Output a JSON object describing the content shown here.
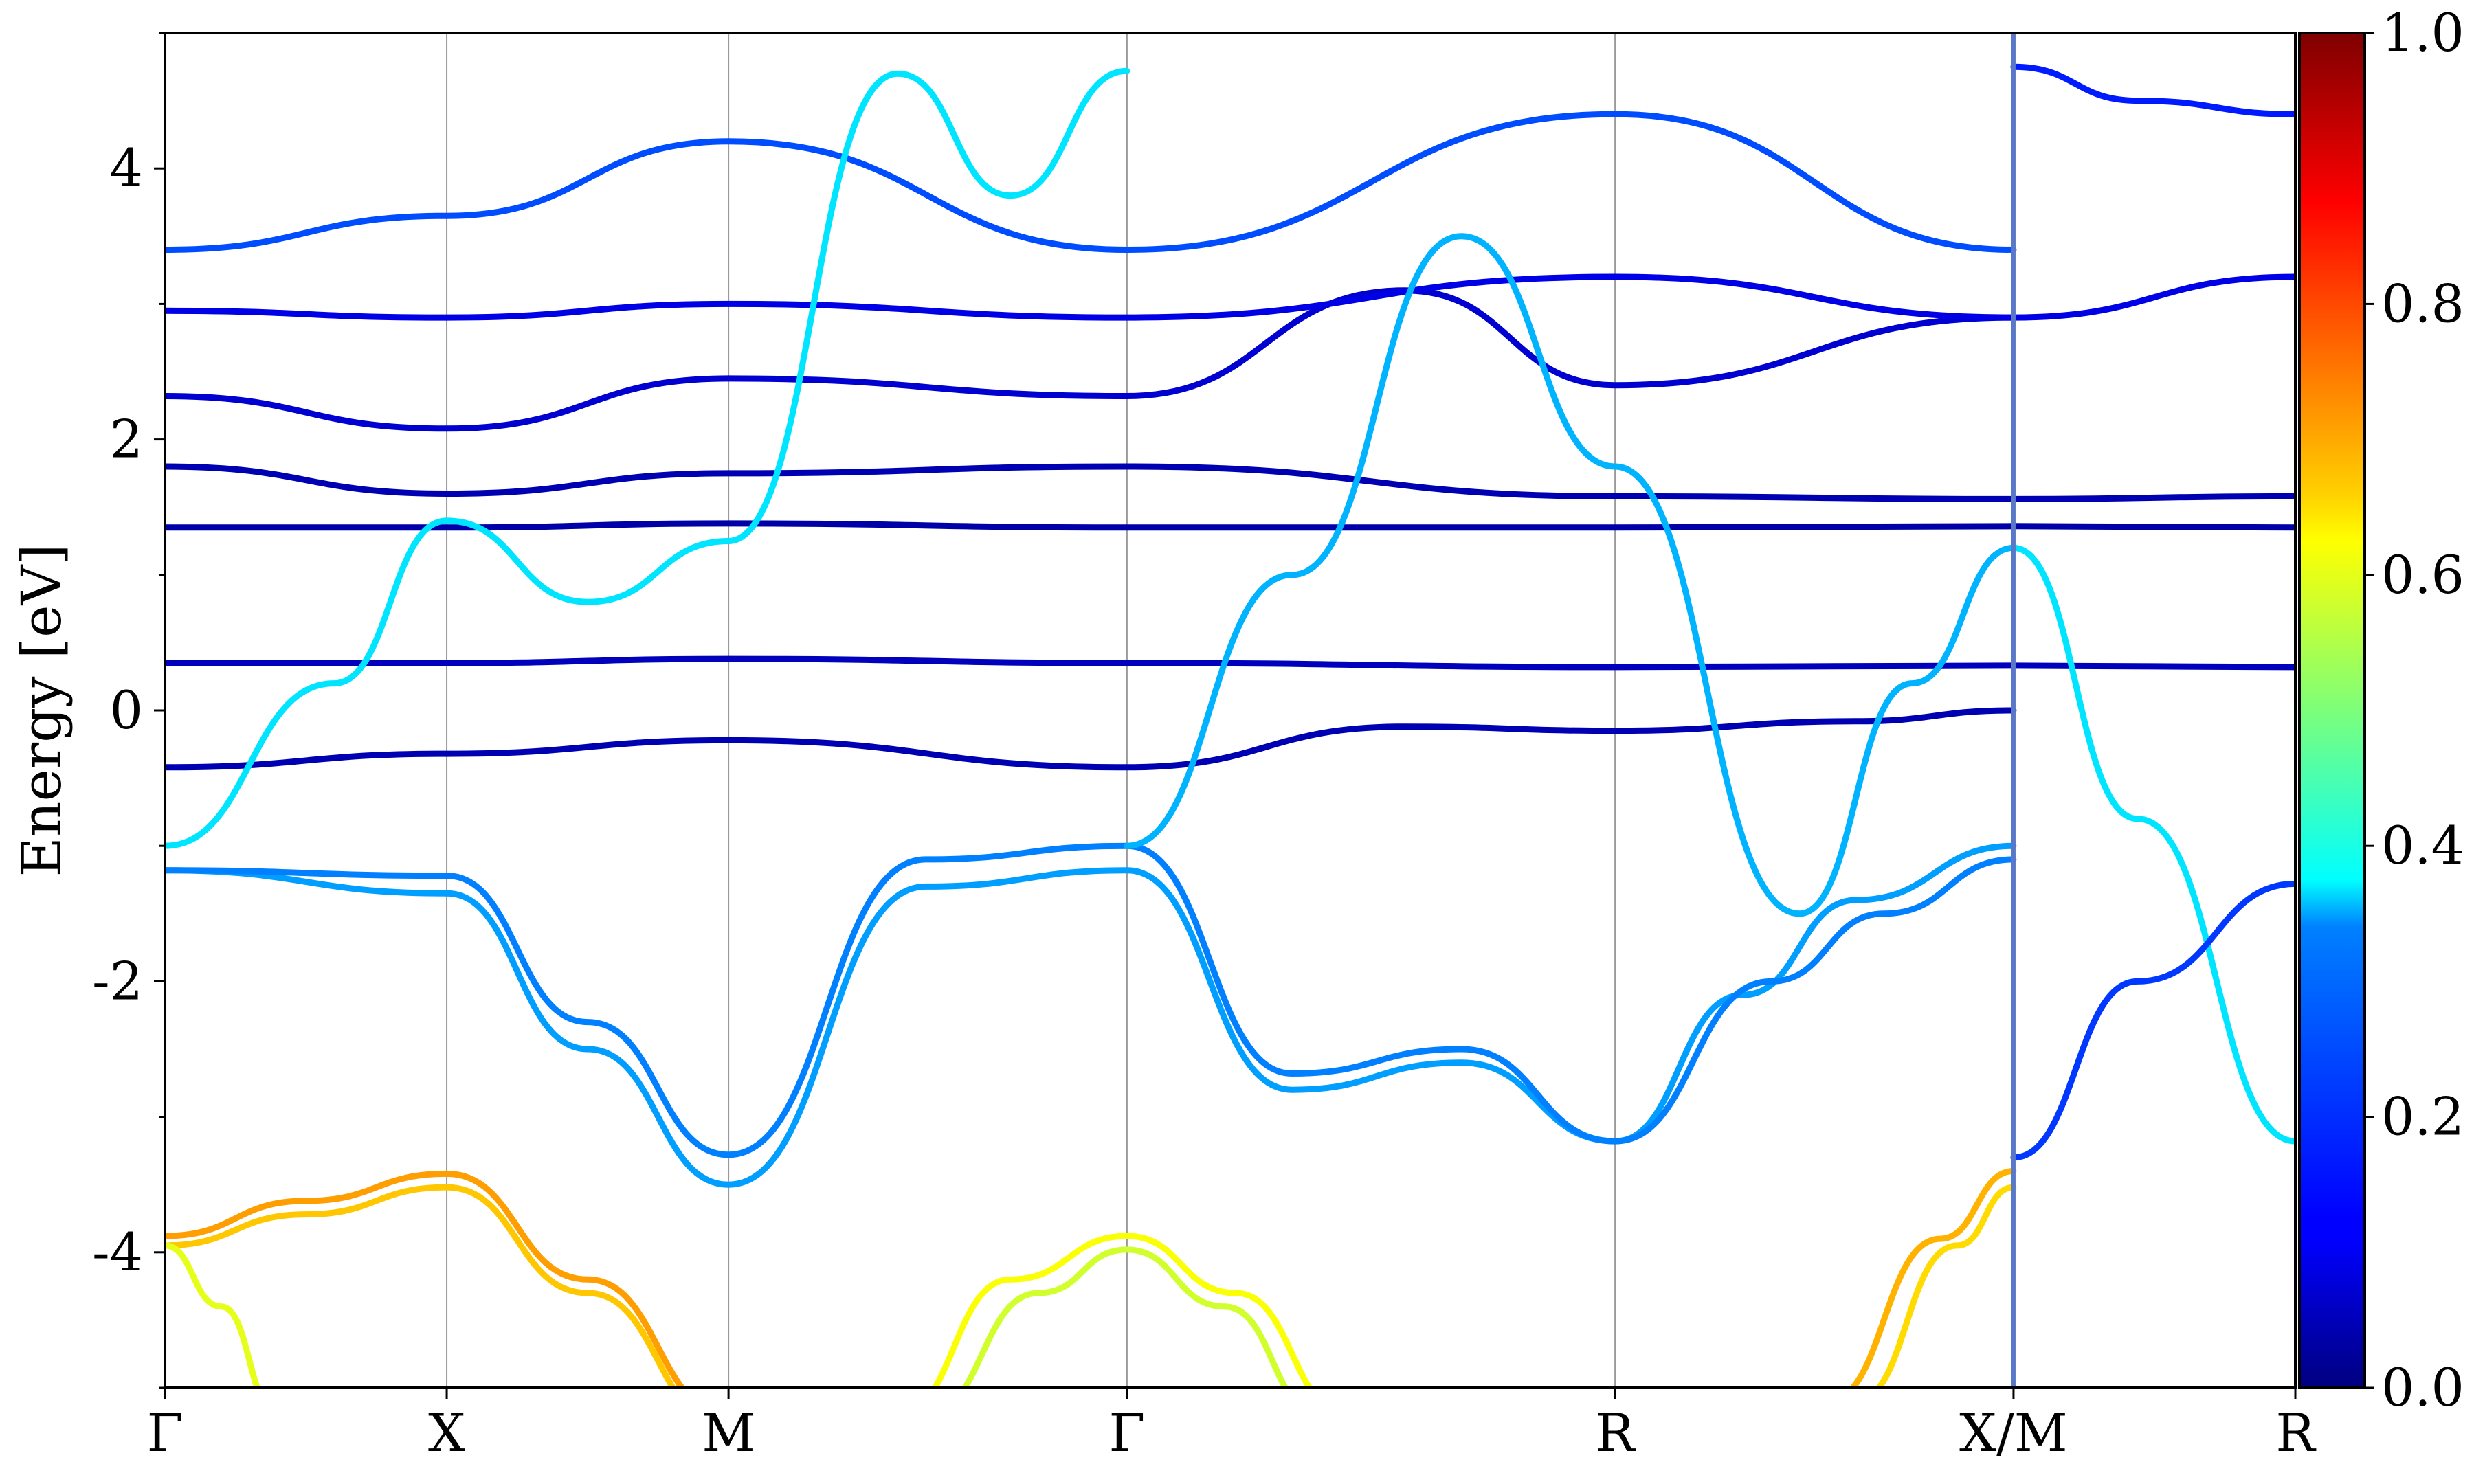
{
  "chart_data": {
    "type": "line",
    "ylabel": "Energy [eV]",
    "xlabel": "",
    "ylim": [
      -5,
      5
    ],
    "yticks": [
      -4,
      -2,
      0,
      2,
      4
    ],
    "ytick_labels": [
      "-4",
      "-2",
      "0",
      "2",
      "4"
    ],
    "kpath_labels": [
      "Γ",
      "X",
      "M",
      "Γ",
      "R",
      "X/M",
      "R"
    ],
    "kpath_positions": [
      0,
      0.5,
      1.0,
      1.707,
      2.573,
      3.28,
      3.78
    ],
    "path_break_at": 3.28,
    "colorbar": {
      "colormap": "jet",
      "range": [
        0.0,
        1.0
      ],
      "ticks": [
        0.0,
        0.2,
        0.4,
        0.6,
        0.8,
        1.0
      ],
      "tick_labels": [
        "0.0",
        "0.2",
        "0.4",
        "0.6",
        "0.8",
        "1.0"
      ]
    },
    "bands": [
      {
        "name": "",
        "weight": 0.72,
        "kx": [
          0,
          0.25,
          0.5,
          0.75,
          1.0
        ],
        "energy": [
          -3.88,
          -3.62,
          -3.42,
          -4.2,
          -5.2
        ]
      },
      {
        "name": "",
        "weight": 0.68,
        "kx": [
          0,
          0.25,
          0.5,
          0.75,
          1.0
        ],
        "energy": [
          -3.95,
          -3.72,
          -3.52,
          -4.3,
          -5.3
        ]
      },
      {
        "name": "",
        "weight": 0.6,
        "kx": [
          0,
          0.1,
          0.2
        ],
        "energy": [
          -3.95,
          -4.4,
          -5.2
        ]
      },
      {
        "name": "",
        "weight": 0.62,
        "kx": [
          1.3,
          1.5,
          1.707,
          1.9,
          2.1
        ],
        "energy": [
          -5.2,
          -4.2,
          -3.88,
          -4.3,
          -5.2
        ]
      },
      {
        "name": "",
        "weight": 0.58,
        "kx": [
          1.35,
          1.55,
          1.707,
          1.88,
          2.05
        ],
        "energy": [
          -5.2,
          -4.3,
          -3.98,
          -4.4,
          -5.2
        ]
      },
      {
        "name": "",
        "weight": 0.7,
        "kx": [
          2.95,
          3.15,
          3.28
        ],
        "energy": [
          -5.1,
          -3.9,
          -3.4
        ]
      },
      {
        "name": "",
        "weight": 0.66,
        "kx": [
          3.0,
          3.18,
          3.28
        ],
        "energy": [
          -5.1,
          -3.95,
          -3.52
        ]
      },
      {
        "name": "",
        "weight": 0.28,
        "kx": [
          0,
          0.5,
          0.75,
          1.0,
          1.35,
          1.707,
          2.0,
          2.3,
          2.573,
          2.8,
          3.0,
          3.28
        ],
        "energy": [
          -1.18,
          -1.35,
          -2.5,
          -3.5,
          -1.3,
          -1.18,
          -2.8,
          -2.6,
          -3.18,
          -2.1,
          -1.4,
          -1.0
        ]
      },
      {
        "name": "",
        "weight": 0.25,
        "kx": [
          0,
          0.5,
          0.75,
          1.0,
          1.35,
          1.707,
          2.0,
          2.3,
          2.573,
          2.85,
          3.05,
          3.28
        ],
        "energy": [
          -1.18,
          -1.22,
          -2.3,
          -3.28,
          -1.1,
          -1.0,
          -2.68,
          -2.5,
          -3.18,
          -2.0,
          -1.5,
          -1.1
        ]
      },
      {
        "name": "",
        "weight": 0.05,
        "kx": [
          0,
          0.5,
          1.0,
          1.707,
          2.2,
          2.573,
          3.0,
          3.28
        ],
        "energy": [
          -0.42,
          -0.32,
          -0.22,
          -0.42,
          -0.12,
          -0.15,
          -0.08,
          0.0
        ]
      },
      {
        "name": "",
        "weight": 0.06,
        "kx": [
          0,
          0.5,
          1.0,
          1.707,
          2.573,
          3.28,
          3.78
        ],
        "energy": [
          0.35,
          0.35,
          0.38,
          0.35,
          0.32,
          0.33,
          0.32
        ]
      },
      {
        "name": "",
        "weight": 0.04,
        "kx": [
          0,
          0.5,
          1.0,
          1.707,
          2.573,
          3.28,
          3.78
        ],
        "energy": [
          1.35,
          1.35,
          1.38,
          1.35,
          1.35,
          1.36,
          1.35
        ]
      },
      {
        "name": "",
        "weight": 0.05,
        "kx": [
          0,
          0.5,
          1.0,
          1.707,
          2.573,
          3.28,
          3.78
        ],
        "energy": [
          1.8,
          1.6,
          1.75,
          1.8,
          1.58,
          1.56,
          1.58
        ]
      },
      {
        "name": "",
        "weight": 0.08,
        "kx": [
          0,
          0.5,
          1.0,
          1.707,
          2.2,
          2.573,
          3.28
        ],
        "energy": [
          2.32,
          2.08,
          2.45,
          2.32,
          3.1,
          2.4,
          2.9
        ]
      },
      {
        "name": "",
        "weight": 0.1,
        "kx": [
          0,
          0.5,
          1.0,
          1.707,
          2.573,
          3.28,
          3.78
        ],
        "energy": [
          2.95,
          2.9,
          3.0,
          2.9,
          3.2,
          2.9,
          3.2
        ]
      },
      {
        "name": "",
        "weight": 0.2,
        "kx": [
          0,
          0.5,
          1.0,
          1.707,
          2.573,
          3.28
        ],
        "energy": [
          3.4,
          3.65,
          4.2,
          3.4,
          4.4,
          3.4
        ]
      },
      {
        "name": "",
        "weight": 0.35,
        "kx": [
          0,
          0.3,
          0.5,
          0.75,
          1.0,
          1.3,
          1.5,
          1.707
        ],
        "energy": [
          -1.0,
          0.2,
          1.4,
          0.8,
          1.25,
          4.7,
          3.8,
          4.72
        ]
      },
      {
        "name": "",
        "weight": 0.3,
        "kx": [
          1.707,
          2.0,
          2.3,
          2.573,
          2.9,
          3.1,
          3.28
        ],
        "energy": [
          -1.0,
          1.0,
          3.5,
          1.8,
          -1.5,
          0.2,
          1.2
        ]
      },
      {
        "name": "",
        "weight": 0.35,
        "kx": [
          3.28,
          3.5,
          3.78
        ],
        "energy": [
          1.2,
          -0.8,
          -3.18
        ]
      },
      {
        "name": "",
        "weight": 0.18,
        "kx": [
          3.28,
          3.5,
          3.78
        ],
        "energy": [
          -3.3,
          -2.0,
          -1.28
        ]
      },
      {
        "name": "",
        "weight": 0.15,
        "kx": [
          3.28,
          3.5,
          3.78
        ],
        "energy": [
          4.75,
          4.5,
          4.4
        ]
      }
    ]
  }
}
